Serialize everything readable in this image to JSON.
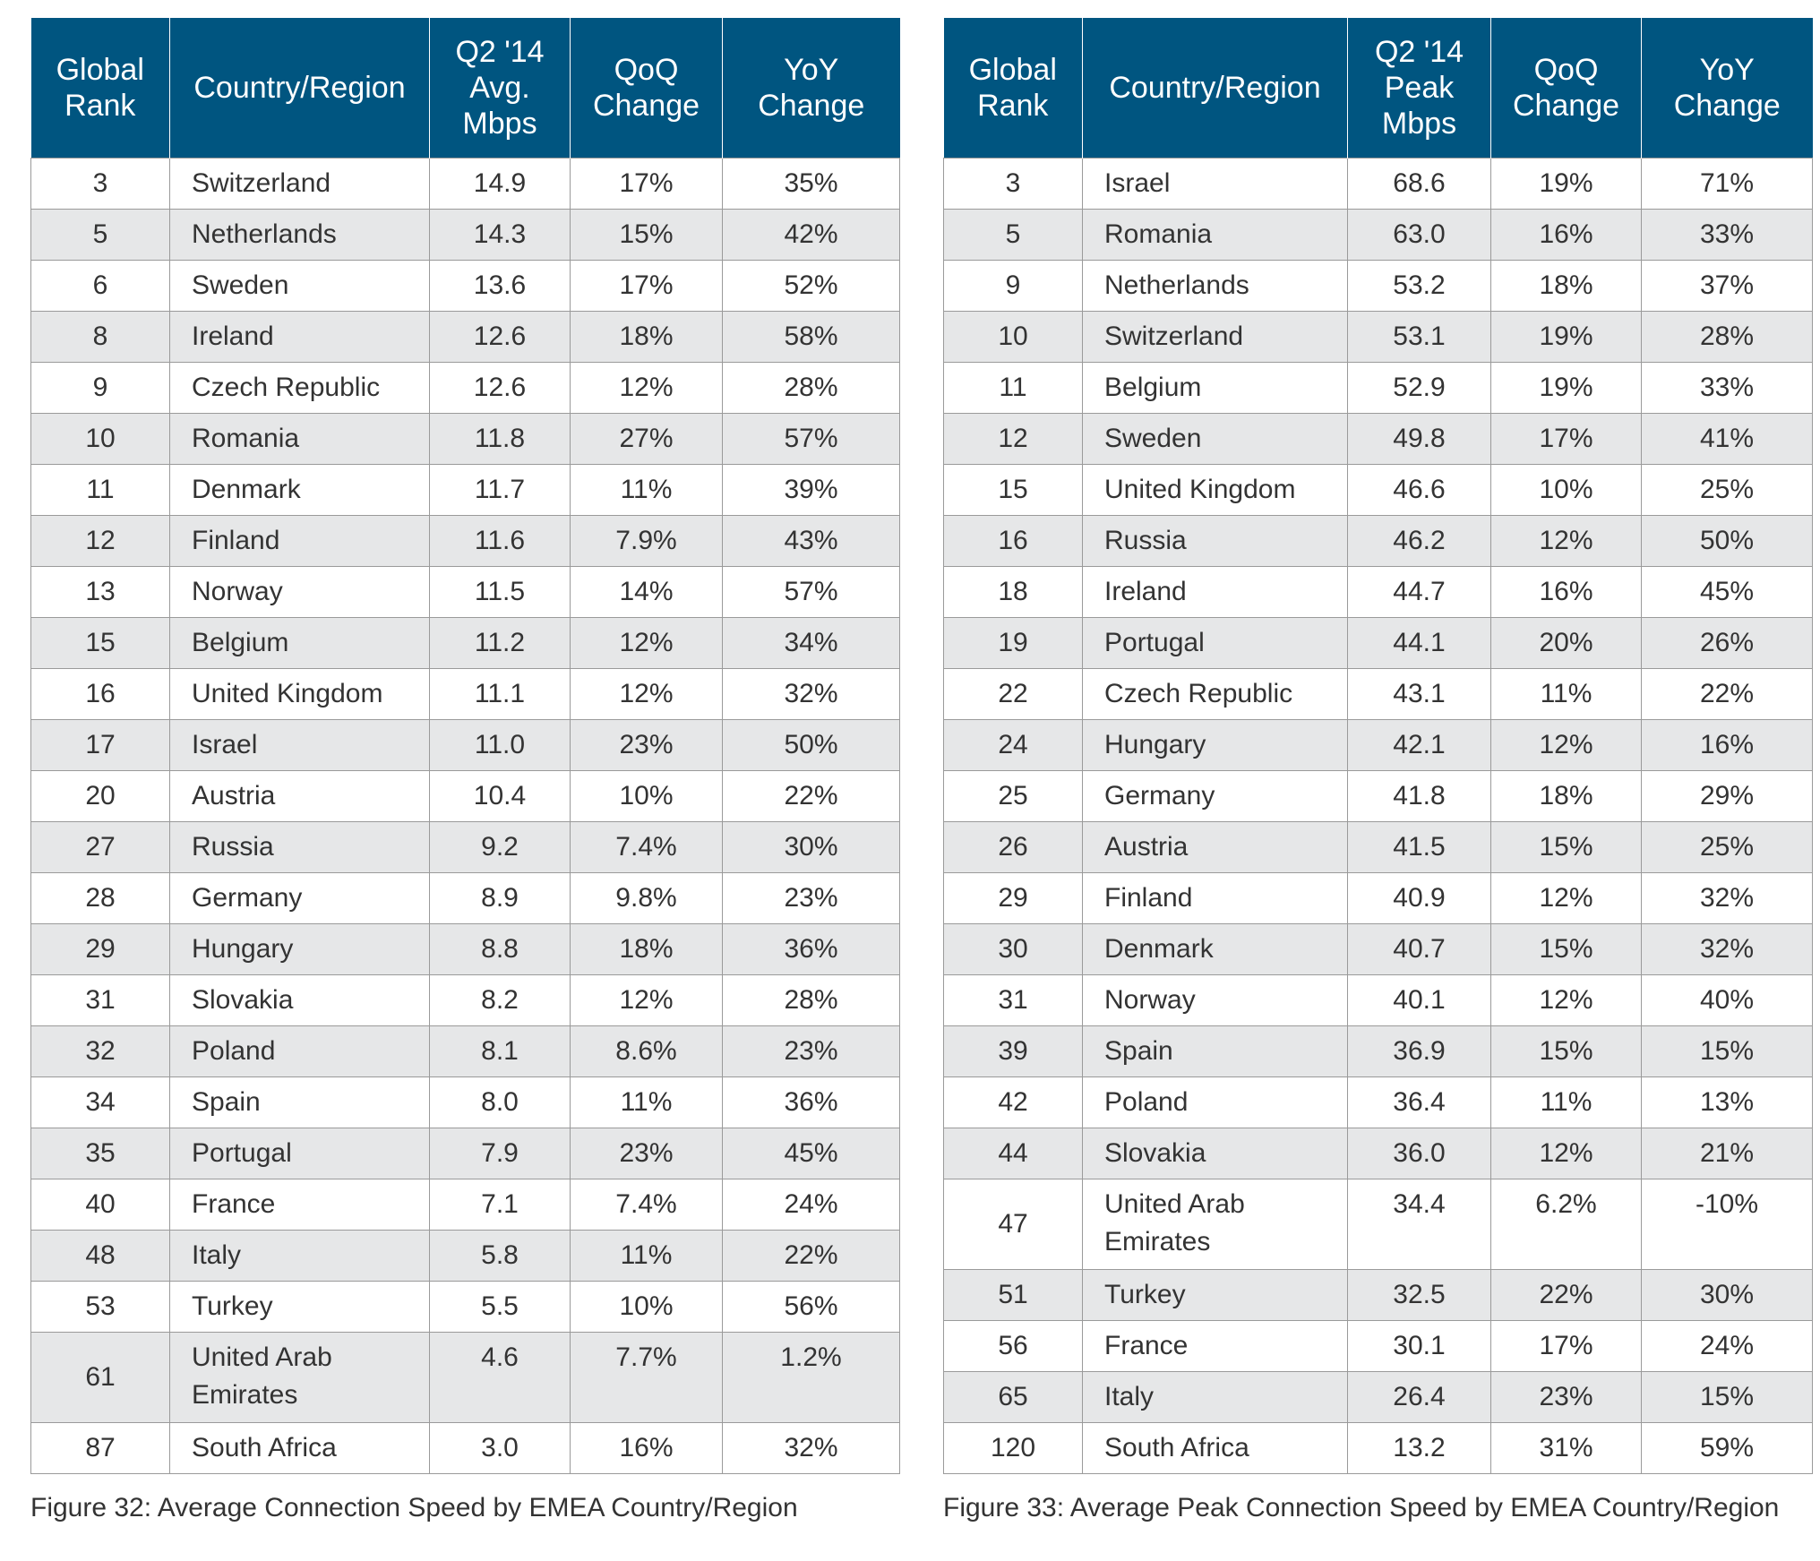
{
  "figure32": {
    "headers": {
      "rank": [
        "Global",
        "Rank"
      ],
      "country": "Country/Region",
      "value": [
        "Q2 '14",
        "Avg.",
        "Mbps"
      ],
      "qoq": [
        "QoQ",
        "Change"
      ],
      "yoy": [
        "YoY",
        "Change"
      ]
    },
    "rows": [
      {
        "rank": "3",
        "country": "Switzerland",
        "value": "14.9",
        "qoq": "17%",
        "yoy": "35%"
      },
      {
        "rank": "5",
        "country": "Netherlands",
        "value": "14.3",
        "qoq": "15%",
        "yoy": "42%"
      },
      {
        "rank": "6",
        "country": "Sweden",
        "value": "13.6",
        "qoq": "17%",
        "yoy": "52%"
      },
      {
        "rank": "8",
        "country": "Ireland",
        "value": "12.6",
        "qoq": "18%",
        "yoy": "58%"
      },
      {
        "rank": "9",
        "country": "Czech Republic",
        "value": "12.6",
        "qoq": "12%",
        "yoy": "28%"
      },
      {
        "rank": "10",
        "country": "Romania",
        "value": "11.8",
        "qoq": "27%",
        "yoy": "57%"
      },
      {
        "rank": "11",
        "country": "Denmark",
        "value": "11.7",
        "qoq": "11%",
        "yoy": "39%"
      },
      {
        "rank": "12",
        "country": "Finland",
        "value": "11.6",
        "qoq": "7.9%",
        "yoy": "43%"
      },
      {
        "rank": "13",
        "country": "Norway",
        "value": "11.5",
        "qoq": "14%",
        "yoy": "57%"
      },
      {
        "rank": "15",
        "country": "Belgium",
        "value": "11.2",
        "qoq": "12%",
        "yoy": "34%"
      },
      {
        "rank": "16",
        "country": "United Kingdom",
        "value": "11.1",
        "qoq": "12%",
        "yoy": "32%"
      },
      {
        "rank": "17",
        "country": "Israel",
        "value": "11.0",
        "qoq": "23%",
        "yoy": "50%"
      },
      {
        "rank": "20",
        "country": "Austria",
        "value": "10.4",
        "qoq": "10%",
        "yoy": "22%"
      },
      {
        "rank": "27",
        "country": "Russia",
        "value": "9.2",
        "qoq": "7.4%",
        "yoy": "30%"
      },
      {
        "rank": "28",
        "country": "Germany",
        "value": "8.9",
        "qoq": "9.8%",
        "yoy": "23%"
      },
      {
        "rank": "29",
        "country": "Hungary",
        "value": "8.8",
        "qoq": "18%",
        "yoy": "36%"
      },
      {
        "rank": "31",
        "country": "Slovakia",
        "value": "8.2",
        "qoq": "12%",
        "yoy": "28%"
      },
      {
        "rank": "32",
        "country": "Poland",
        "value": "8.1",
        "qoq": "8.6%",
        "yoy": "23%"
      },
      {
        "rank": "34",
        "country": "Spain",
        "value": "8.0",
        "qoq": "11%",
        "yoy": "36%"
      },
      {
        "rank": "35",
        "country": "Portugal",
        "value": "7.9",
        "qoq": "23%",
        "yoy": "45%"
      },
      {
        "rank": "40",
        "country": "France",
        "value": "7.1",
        "qoq": "7.4%",
        "yoy": "24%"
      },
      {
        "rank": "48",
        "country": "Italy",
        "value": "5.8",
        "qoq": "11%",
        "yoy": "22%"
      },
      {
        "rank": "53",
        "country": "Turkey",
        "value": "5.5",
        "qoq": "10%",
        "yoy": "56%"
      },
      {
        "rank": "61",
        "country": "United Arab Emirates",
        "value": "4.6",
        "qoq": "7.7%",
        "yoy": "1.2%"
      },
      {
        "rank": "87",
        "country": "South Africa",
        "value": "3.0",
        "qoq": "16%",
        "yoy": "32%"
      }
    ],
    "caption": "Figure 32: Average Connection Speed by EMEA Country/Region"
  },
  "figure33": {
    "headers": {
      "rank": [
        "Global",
        "Rank"
      ],
      "country": "Country/Region",
      "value": [
        "Q2 '14",
        "Peak",
        "Mbps"
      ],
      "qoq": [
        "QoQ",
        "Change"
      ],
      "yoy": [
        "YoY",
        "Change"
      ]
    },
    "rows": [
      {
        "rank": "3",
        "country": "Israel",
        "value": "68.6",
        "qoq": "19%",
        "yoy": "71%"
      },
      {
        "rank": "5",
        "country": "Romania",
        "value": "63.0",
        "qoq": "16%",
        "yoy": "33%"
      },
      {
        "rank": "9",
        "country": "Netherlands",
        "value": "53.2",
        "qoq": "18%",
        "yoy": "37%"
      },
      {
        "rank": "10",
        "country": "Switzerland",
        "value": "53.1",
        "qoq": "19%",
        "yoy": "28%"
      },
      {
        "rank": "11",
        "country": "Belgium",
        "value": "52.9",
        "qoq": "19%",
        "yoy": "33%"
      },
      {
        "rank": "12",
        "country": "Sweden",
        "value": "49.8",
        "qoq": "17%",
        "yoy": "41%"
      },
      {
        "rank": "15",
        "country": "United Kingdom",
        "value": "46.6",
        "qoq": "10%",
        "yoy": "25%"
      },
      {
        "rank": "16",
        "country": "Russia",
        "value": "46.2",
        "qoq": "12%",
        "yoy": "50%"
      },
      {
        "rank": "18",
        "country": "Ireland",
        "value": "44.7",
        "qoq": "16%",
        "yoy": "45%"
      },
      {
        "rank": "19",
        "country": "Portugal",
        "value": "44.1",
        "qoq": "20%",
        "yoy": "26%"
      },
      {
        "rank": "22",
        "country": "Czech Republic",
        "value": "43.1",
        "qoq": "11%",
        "yoy": "22%"
      },
      {
        "rank": "24",
        "country": "Hungary",
        "value": "42.1",
        "qoq": "12%",
        "yoy": "16%"
      },
      {
        "rank": "25",
        "country": "Germany",
        "value": "41.8",
        "qoq": "18%",
        "yoy": "29%"
      },
      {
        "rank": "26",
        "country": "Austria",
        "value": "41.5",
        "qoq": "15%",
        "yoy": "25%"
      },
      {
        "rank": "29",
        "country": "Finland",
        "value": "40.9",
        "qoq": "12%",
        "yoy": "32%"
      },
      {
        "rank": "30",
        "country": "Denmark",
        "value": "40.7",
        "qoq": "15%",
        "yoy": "32%"
      },
      {
        "rank": "31",
        "country": "Norway",
        "value": "40.1",
        "qoq": "12%",
        "yoy": "40%"
      },
      {
        "rank": "39",
        "country": "Spain",
        "value": "36.9",
        "qoq": "15%",
        "yoy": "15%"
      },
      {
        "rank": "42",
        "country": "Poland",
        "value": "36.4",
        "qoq": "11%",
        "yoy": "13%"
      },
      {
        "rank": "44",
        "country": "Slovakia",
        "value": "36.0",
        "qoq": "12%",
        "yoy": "21%"
      },
      {
        "rank": "47",
        "country": "United Arab Emirates",
        "value": "34.4",
        "qoq": "6.2%",
        "yoy": "-10%"
      },
      {
        "rank": "51",
        "country": "Turkey",
        "value": "32.5",
        "qoq": "22%",
        "yoy": "30%"
      },
      {
        "rank": "56",
        "country": "France",
        "value": "30.1",
        "qoq": "17%",
        "yoy": "24%"
      },
      {
        "rank": "65",
        "country": "Italy",
        "value": "26.4",
        "qoq": "23%",
        "yoy": "15%"
      },
      {
        "rank": "120",
        "country": "South Africa",
        "value": "13.2",
        "qoq": "31%",
        "yoy": "59%"
      }
    ],
    "caption": "Figure 33: Average Peak Connection Speed by EMEA Country/Region"
  },
  "colors": {
    "header_bg": "#005580",
    "header_text": "#ffffff",
    "stripe_bg": "#e6e7e8",
    "border": "#9a9a9a"
  }
}
